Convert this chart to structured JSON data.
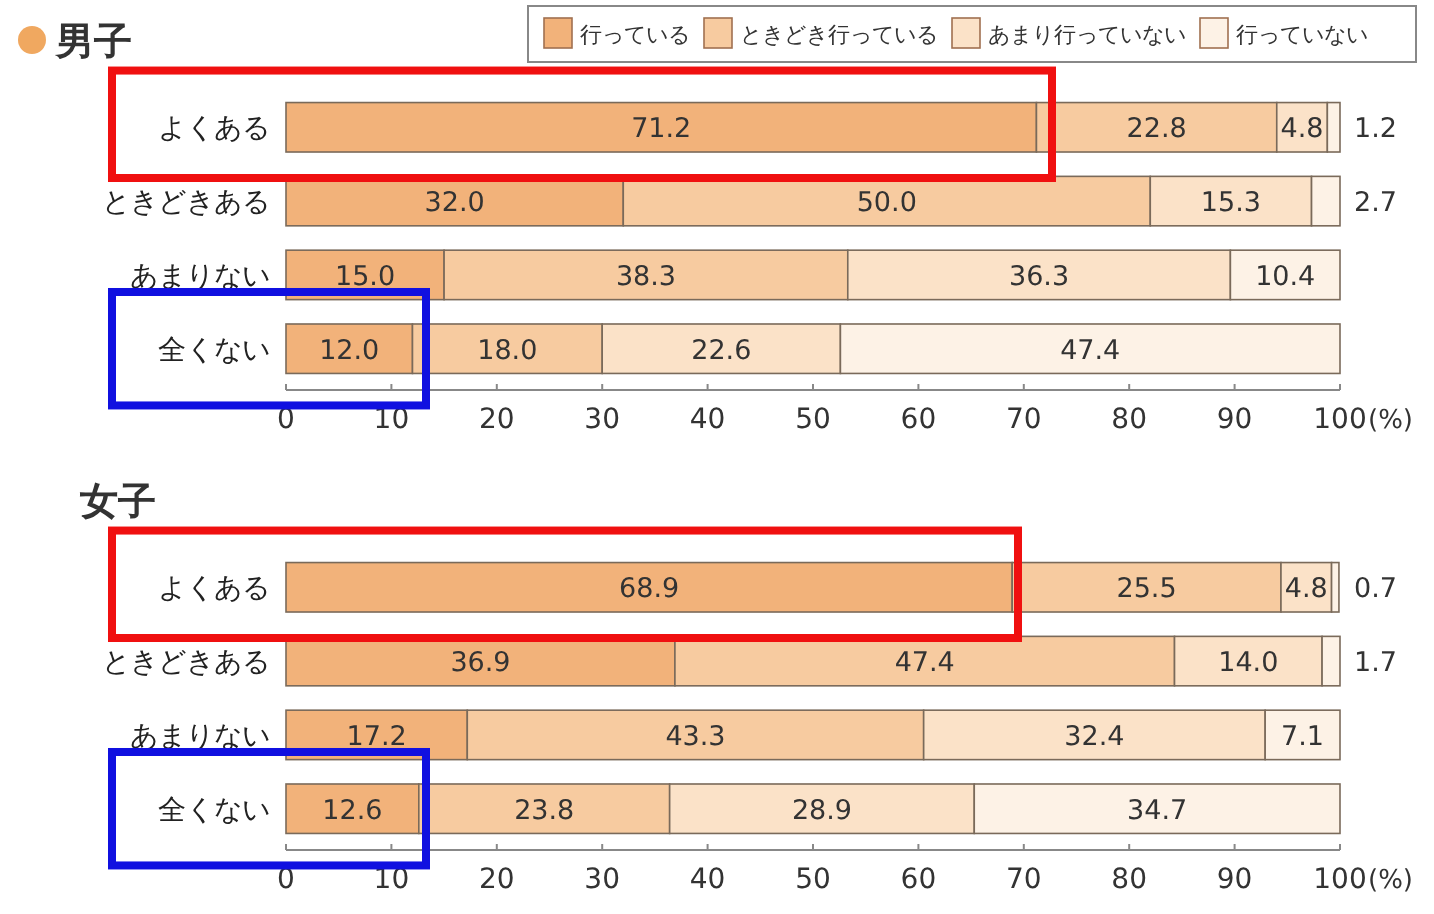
{
  "chart_data": [
    {
      "type": "bar",
      "orientation": "horizontal",
      "stacked": true,
      "title": "男子",
      "xlabel": "(%)",
      "categories": [
        "よくある",
        "ときどきある",
        "あまりない",
        "全くない"
      ],
      "series": [
        {
          "name": "行っている",
          "color": "#f2b27a",
          "values": [
            71.2,
            32.0,
            15.0,
            12.0
          ],
          "value_labels": [
            "71.2",
            "32.0",
            "15.0",
            "12.0"
          ]
        },
        {
          "name": "ときどき行っている",
          "color": "#f7cba0",
          "values": [
            22.8,
            50.0,
            38.3,
            18.0
          ],
          "value_labels": [
            "22.8",
            "50.0",
            "38.3",
            "18.0"
          ]
        },
        {
          "name": "あまり行っていない",
          "color": "#fbe2c8",
          "values": [
            4.8,
            15.3,
            36.3,
            22.6
          ],
          "value_labels": [
            "4.8",
            "15.3",
            "36.3",
            "22.6"
          ]
        },
        {
          "name": "行っていない",
          "color": "#fdf2e6",
          "values": [
            1.2,
            2.7,
            10.4,
            47.4
          ],
          "value_labels": [
            "1.2",
            "2.7",
            "10.4",
            "47.4"
          ]
        }
      ],
      "xlim": [
        0,
        100
      ],
      "xticks": [
        0,
        10,
        20,
        30,
        40,
        50,
        60,
        70,
        80,
        90,
        100
      ],
      "legend": "top"
    },
    {
      "type": "bar",
      "orientation": "horizontal",
      "stacked": true,
      "title": "女子",
      "xlabel": "(%)",
      "categories": [
        "よくある",
        "ときどきある",
        "あまりない",
        "全くない"
      ],
      "series": [
        {
          "color": "#f2b27a",
          "values": [
            68.9,
            36.9,
            17.2,
            12.6
          ],
          "value_labels": [
            "68.9",
            "36.9",
            "17.2",
            "12.6"
          ]
        },
        {
          "color": "#f7cba0",
          "values": [
            25.5,
            47.4,
            43.3,
            23.8
          ],
          "value_labels": [
            "25.5",
            "47.4",
            "43.3",
            "23.8"
          ]
        },
        {
          "color": "#fbe2c8",
          "values": [
            4.8,
            14.0,
            32.4,
            28.9
          ],
          "value_labels": [
            "4.8",
            "14.0",
            "32.4",
            "28.9"
          ]
        },
        {
          "color": "#fdf2e6",
          "values": [
            0.7,
            1.7,
            7.1,
            34.7
          ],
          "value_labels": [
            "0.7",
            "1.7",
            "7.1",
            "34.7"
          ]
        }
      ],
      "xlim": [
        0,
        100
      ],
      "xticks": [
        0,
        10,
        20,
        30,
        40,
        50,
        60,
        70,
        80,
        90,
        100
      ],
      "legend": false
    }
  ]
}
